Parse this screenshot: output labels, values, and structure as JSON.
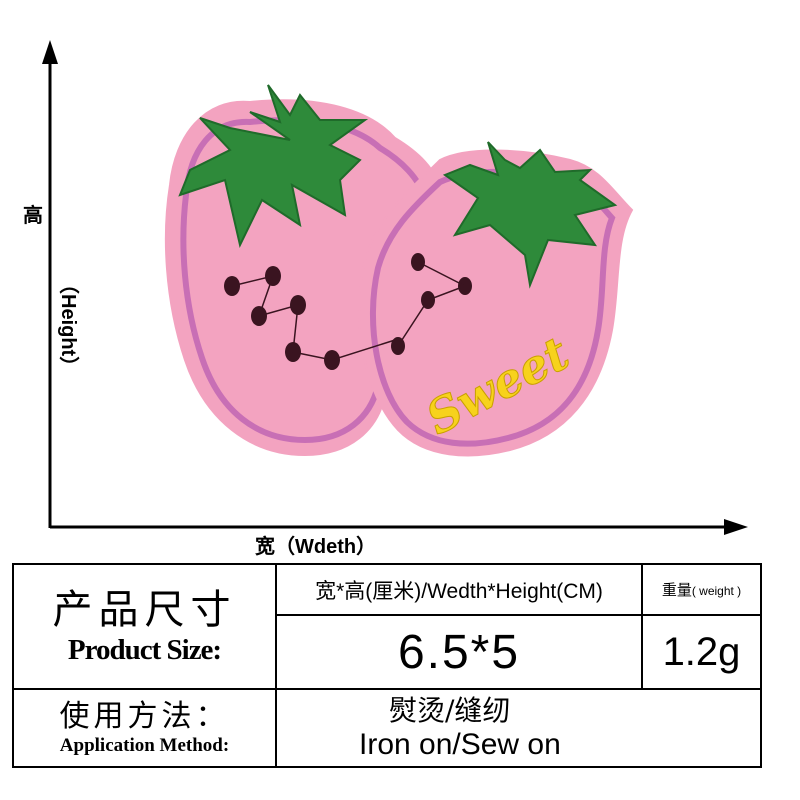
{
  "axes": {
    "height_label_cn": "高",
    "height_label_en": "（Height）",
    "width_label": "宽（Wdeth）"
  },
  "patch": {
    "embroidered_text": "Sweet",
    "colors": {
      "felt_pink": "#f3a3c0",
      "border_purple": "#c86fb5",
      "leaf_green": "#2e8a3a",
      "seed_dark": "#3a1420",
      "text_yellow": "#f7d21c"
    }
  },
  "spec_table": {
    "product_size_cn": "产品尺寸",
    "product_size_en": "Product Size:",
    "dimension_header": "宽*高(厘米)/Wedth*Height(CM)",
    "weight_header_cn": "重量",
    "weight_header_en": "( weight )",
    "size_value": "6.5*5",
    "weight_value": "1.2g",
    "method_cn": "使用方法：",
    "method_en": "Application Method:",
    "method_value_cn": "熨烫/缝纫",
    "method_value_en": "Iron on/Sew on"
  }
}
